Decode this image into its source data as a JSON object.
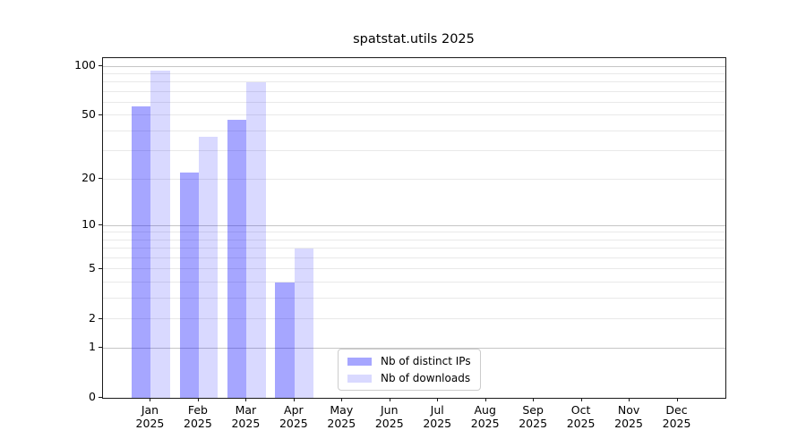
{
  "chart_data": {
    "type": "bar",
    "title": "spatstat.utils 2025",
    "categories": [
      "Jan 2025",
      "Feb 2025",
      "Mar 2025",
      "Apr 2025",
      "May 2025",
      "Jun 2025",
      "Jul 2025",
      "Aug 2025",
      "Sep 2025",
      "Oct 2025",
      "Nov 2025",
      "Dec 2025"
    ],
    "series": [
      {
        "name": "Nb of distinct IPs",
        "color": "rgba(0,0,255,0.35)",
        "values": [
          57,
          22,
          47,
          4,
          0,
          0,
          0,
          0,
          0,
          0,
          0,
          0
        ]
      },
      {
        "name": "Nb of downloads",
        "color": "rgba(0,0,255,0.15)",
        "values": [
          94,
          37,
          80,
          7,
          0,
          0,
          0,
          0,
          0,
          0,
          0,
          0
        ]
      }
    ],
    "y_axis": {
      "scale": "log1p",
      "min": 0,
      "max": 112,
      "tick_labels": [
        100,
        50,
        20,
        10,
        5,
        2,
        1,
        0
      ],
      "gridlines_dark": [
        100,
        10,
        1
      ],
      "gridlines_light": [
        90,
        80,
        70,
        60,
        50,
        40,
        30,
        20,
        9,
        8,
        7,
        6,
        5,
        4,
        3,
        2
      ]
    },
    "x_axis": {
      "tick_label_lines": 2
    },
    "legend": {
      "position": "lower center"
    },
    "grid": true
  },
  "colors": {
    "grid_dark": "#c6c6c6",
    "grid_light": "#e9e9e9",
    "spine": "#1a1a1a",
    "background": "#ffffff",
    "series_ips": "#a6a6ff",
    "series_downloads": "#d9d9ff"
  }
}
